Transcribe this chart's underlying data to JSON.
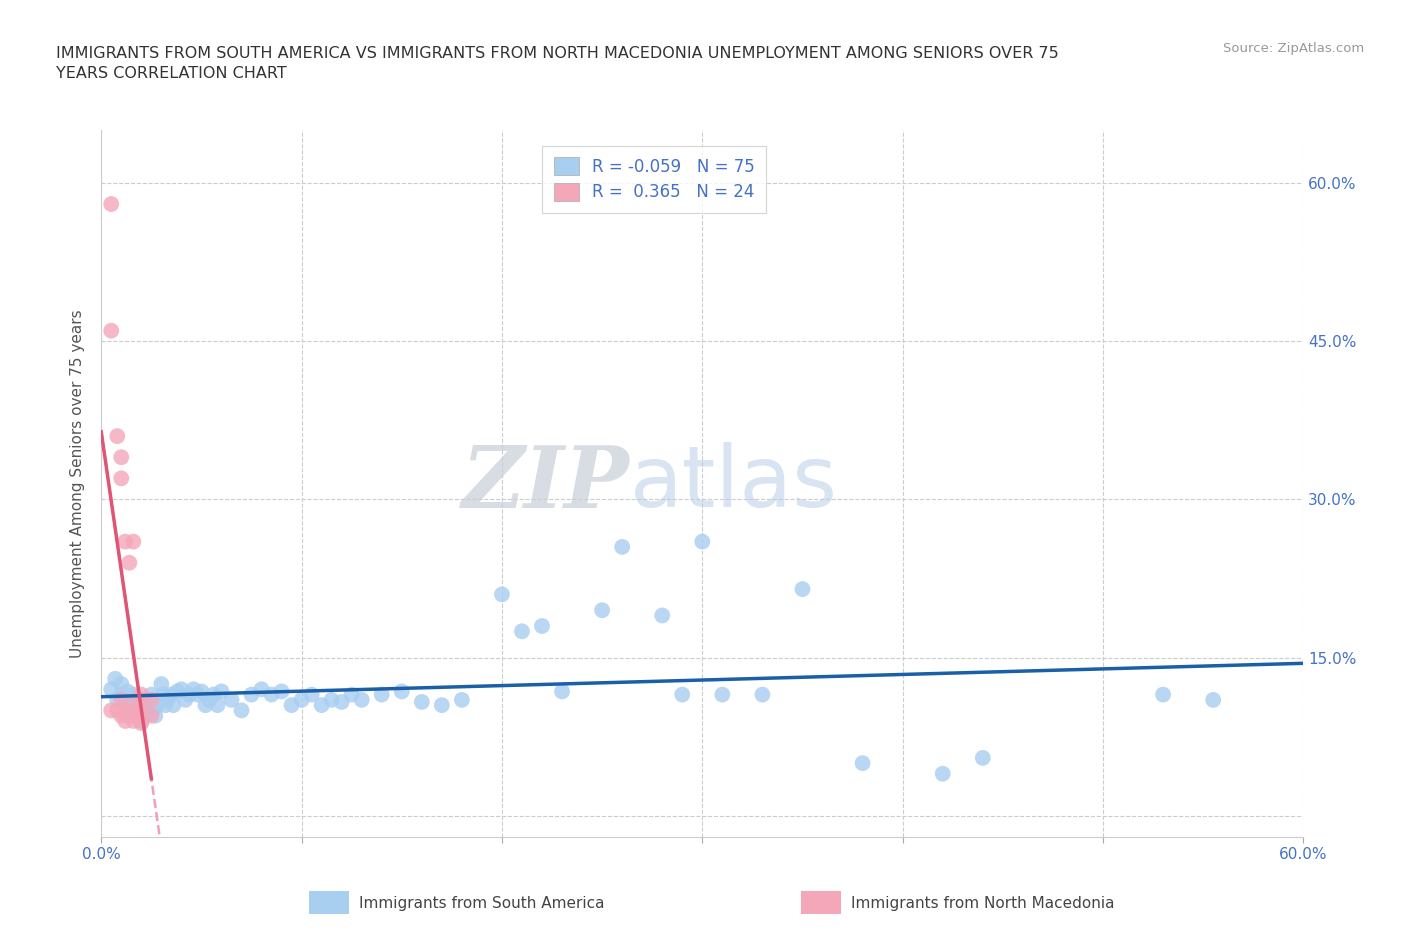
{
  "title": "IMMIGRANTS FROM SOUTH AMERICA VS IMMIGRANTS FROM NORTH MACEDONIA UNEMPLOYMENT AMONG SENIORS OVER 75\nYEARS CORRELATION CHART",
  "source": "Source: ZipAtlas.com",
  "ylabel": "Unemployment Among Seniors over 75 years",
  "xlim": [
    0.0,
    0.6
  ],
  "ylim": [
    -0.02,
    0.65
  ],
  "r_blue": -0.059,
  "n_blue": 75,
  "r_pink": 0.365,
  "n_pink": 24,
  "color_blue": "#a8cef0",
  "color_pink": "#f4a7b9",
  "line_blue": "#1a5fa8",
  "line_pink": "#e05575",
  "line_pink_dashed": "#f0a0b8",
  "watermark_zip": "ZIP",
  "watermark_atlas": "atlas",
  "legend_label_blue": "Immigrants from South America",
  "legend_label_pink": "Immigrants from North Macedonia",
  "blue_x": [
    0.005,
    0.007,
    0.008,
    0.01,
    0.01,
    0.012,
    0.013,
    0.014,
    0.015,
    0.016,
    0.017,
    0.018,
    0.02,
    0.02,
    0.021,
    0.022,
    0.023,
    0.025,
    0.026,
    0.027,
    0.028,
    0.03,
    0.031,
    0.032,
    0.033,
    0.035,
    0.036,
    0.038,
    0.04,
    0.042,
    0.044,
    0.046,
    0.048,
    0.05,
    0.052,
    0.054,
    0.056,
    0.058,
    0.06,
    0.065,
    0.07,
    0.075,
    0.08,
    0.085,
    0.09,
    0.095,
    0.1,
    0.105,
    0.11,
    0.115,
    0.12,
    0.125,
    0.13,
    0.14,
    0.15,
    0.16,
    0.17,
    0.18,
    0.2,
    0.21,
    0.22,
    0.23,
    0.25,
    0.26,
    0.28,
    0.29,
    0.3,
    0.31,
    0.33,
    0.35,
    0.38,
    0.42,
    0.44,
    0.53,
    0.555
  ],
  "blue_y": [
    0.12,
    0.13,
    0.11,
    0.115,
    0.125,
    0.108,
    0.118,
    0.105,
    0.112,
    0.115,
    0.1,
    0.095,
    0.11,
    0.09,
    0.108,
    0.095,
    0.1,
    0.115,
    0.1,
    0.095,
    0.105,
    0.125,
    0.115,
    0.105,
    0.11,
    0.115,
    0.105,
    0.118,
    0.12,
    0.11,
    0.115,
    0.12,
    0.115,
    0.118,
    0.105,
    0.11,
    0.115,
    0.105,
    0.118,
    0.11,
    0.1,
    0.115,
    0.12,
    0.115,
    0.118,
    0.105,
    0.11,
    0.115,
    0.105,
    0.11,
    0.108,
    0.115,
    0.11,
    0.115,
    0.118,
    0.108,
    0.105,
    0.11,
    0.21,
    0.175,
    0.18,
    0.118,
    0.195,
    0.255,
    0.19,
    0.115,
    0.26,
    0.115,
    0.115,
    0.215,
    0.05,
    0.04,
    0.055,
    0.115,
    0.11
  ],
  "pink_x": [
    0.005,
    0.005,
    0.005,
    0.008,
    0.008,
    0.01,
    0.01,
    0.01,
    0.01,
    0.012,
    0.012,
    0.012,
    0.014,
    0.014,
    0.016,
    0.016,
    0.016,
    0.018,
    0.018,
    0.02,
    0.02,
    0.02,
    0.025,
    0.025
  ],
  "pink_y": [
    0.58,
    0.46,
    0.1,
    0.36,
    0.1,
    0.34,
    0.32,
    0.11,
    0.095,
    0.26,
    0.1,
    0.09,
    0.24,
    0.095,
    0.26,
    0.1,
    0.09,
    0.11,
    0.095,
    0.115,
    0.1,
    0.088,
    0.11,
    0.095
  ]
}
